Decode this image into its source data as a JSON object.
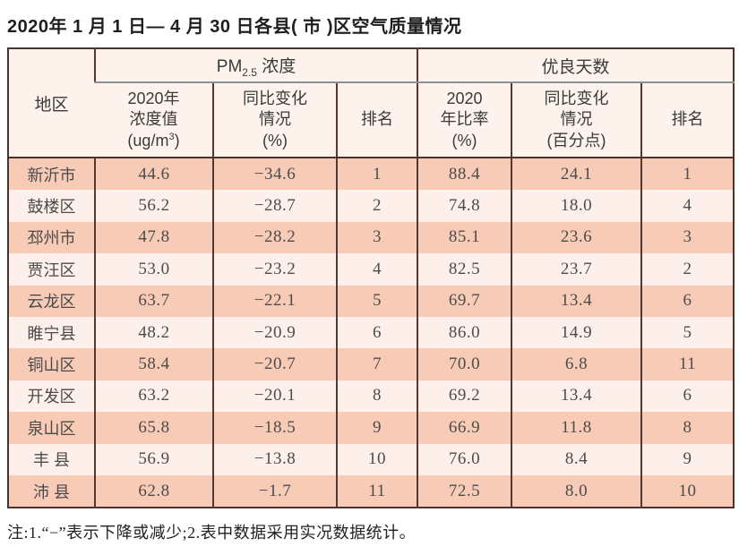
{
  "page": {
    "title": "2020年 1 月 1 日— 4 月 30 日各县( 市 )区空气质量情况",
    "note": "注:1.“−”表示下降或减少;2.表中数据采用实况数据统计。"
  },
  "header": {
    "region": "地区",
    "pm_group": {
      "prefix": "PM",
      "sub": "2.5",
      "suffix": " 浓度"
    },
    "good_group": "优良天数",
    "sub_cols": {
      "pm_value": {
        "l1": "2020年",
        "l2": "浓度值",
        "l3a": "(ug/m",
        "l3sup": "3",
        "l3b": ")"
      },
      "pm_change": {
        "l1": "同比变化",
        "l2": "情况",
        "l3": "(%)"
      },
      "pm_rank": "排名",
      "good_rate": {
        "l1": "2020",
        "l2": "年比率",
        "l3": "(%)"
      },
      "good_change": {
        "l1": "同比变化",
        "l2": "情况",
        "l3": "(百分点)"
      },
      "good_rank": "排名"
    }
  },
  "chart_data": {
    "type": "table",
    "title": "2020年1月1日—4月30日各县(市)区空气质量情况",
    "column_groups": [
      "地区",
      "PM2.5浓度",
      "优良天数"
    ],
    "columns": [
      "地区",
      "2020年浓度值(ug/m3)",
      "同比变化情况(%)",
      "排名",
      "2020年比率(%)",
      "同比变化情况(百分点)",
      "排名"
    ],
    "rows": [
      {
        "region": "新沂市",
        "pm_value": "44.6",
        "pm_change": "−34.6",
        "pm_rank": "1",
        "good_rate": "88.4",
        "good_change": "24.1",
        "good_rank": "1"
      },
      {
        "region": "鼓楼区",
        "pm_value": "56.2",
        "pm_change": "−28.7",
        "pm_rank": "2",
        "good_rate": "74.8",
        "good_change": "18.0",
        "good_rank": "4"
      },
      {
        "region": "邳州市",
        "pm_value": "47.8",
        "pm_change": "−28.2",
        "pm_rank": "3",
        "good_rate": "85.1",
        "good_change": "23.6",
        "good_rank": "3"
      },
      {
        "region": "贾汪区",
        "pm_value": "53.0",
        "pm_change": "−23.2",
        "pm_rank": "4",
        "good_rate": "82.5",
        "good_change": "23.7",
        "good_rank": "2"
      },
      {
        "region": "云龙区",
        "pm_value": "63.7",
        "pm_change": "−22.1",
        "pm_rank": "5",
        "good_rate": "69.7",
        "good_change": "13.4",
        "good_rank": "6"
      },
      {
        "region": "睢宁县",
        "pm_value": "48.2",
        "pm_change": "−20.9",
        "pm_rank": "6",
        "good_rate": "86.0",
        "good_change": "14.9",
        "good_rank": "5"
      },
      {
        "region": "铜山区",
        "pm_value": "58.4",
        "pm_change": "−20.7",
        "pm_rank": "7",
        "good_rate": "70.0",
        "good_change": "6.8",
        "good_rank": "11"
      },
      {
        "region": "开发区",
        "pm_value": "63.2",
        "pm_change": "−20.1",
        "pm_rank": "8",
        "good_rate": "69.2",
        "good_change": "13.4",
        "good_rank": "6"
      },
      {
        "region": "泉山区",
        "pm_value": "65.8",
        "pm_change": "−18.5",
        "pm_rank": "9",
        "good_rate": "66.9",
        "good_change": "11.8",
        "good_rank": "8"
      },
      {
        "region": "丰 县",
        "pm_value": "56.9",
        "pm_change": "−13.8",
        "pm_rank": "10",
        "good_rate": "76.0",
        "good_change": "8.4",
        "good_rank": "9"
      },
      {
        "region": "沛 县",
        "pm_value": "62.8",
        "pm_change": "−1.7",
        "pm_rank": "11",
        "good_rate": "72.5",
        "good_change": "8.0",
        "good_rank": "10"
      }
    ]
  },
  "colors": {
    "row_odd": "#f8cbb6",
    "row_even": "#fdf0ea",
    "header_bg": "#fdf2ec",
    "border_dark": "#4a332e",
    "border_red": "#55382f",
    "group_divider_gray": "#8f8f8f",
    "text": "#4c4c4c"
  }
}
